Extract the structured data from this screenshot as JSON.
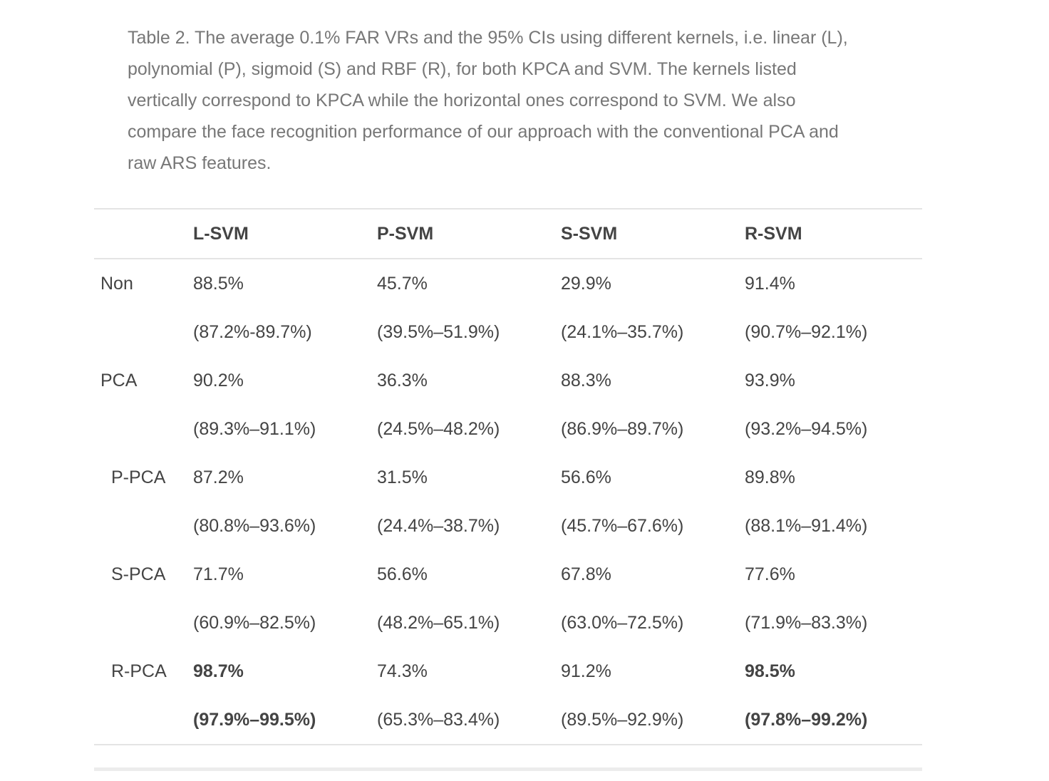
{
  "caption": {
    "lines": [
      "Table 2. The average 0.1% FAR VRs and the 95% CIs using different kernels, i.e. linear (L),",
      "polynomial (P), sigmoid (S) and RBF (R), for both KPCA and SVM. The kernels listed",
      "vertically correspond to KPCA while the horizontal ones correspond to SVM. We also",
      "compare the face recognition performance of our approach with the conventional PCA and",
      "raw ARS features."
    ]
  },
  "table": {
    "corner": "",
    "headers": [
      "L-SVM",
      "P-SVM",
      "S-SVM",
      "R-SVM"
    ],
    "rows": [
      {
        "label": "Non",
        "vr": [
          "88.5%",
          "45.7%",
          "29.9%",
          "91.4%"
        ],
        "ci": [
          "(87.2%-89.7%)",
          "(39.5%–51.9%)",
          "(24.1%–35.7%)",
          "(90.7%–92.1%)"
        ]
      },
      {
        "label": "PCA",
        "vr": [
          "90.2%",
          "36.3%",
          "88.3%",
          "93.9%"
        ],
        "ci": [
          "(89.3%–91.1%)",
          "(24.5%–48.2%)",
          "(86.9%–89.7%)",
          "(93.2%–94.5%)"
        ]
      },
      {
        "label": "P-PCA",
        "vr": [
          "87.2%",
          "31.5%",
          "56.6%",
          "89.8%"
        ],
        "ci": [
          "(80.8%–93.6%)",
          "(24.4%–38.7%)",
          "(45.7%–67.6%)",
          "(88.1%–91.4%)"
        ]
      },
      {
        "label": "S-PCA",
        "vr": [
          "71.7%",
          "56.6%",
          "67.8%",
          "77.6%"
        ],
        "ci": [
          "(60.9%–82.5%)",
          "(48.2%–65.1%)",
          "(63.0%–72.5%)",
          "(71.9%–83.3%)"
        ]
      },
      {
        "label": "R-PCA",
        "vr": [
          "98.7%",
          "74.3%",
          "91.2%",
          "98.5%"
        ],
        "ci": [
          "(97.9%–99.5%)",
          "(65.3%–83.4%)",
          "(89.5%–92.9%)",
          "(97.8%–99.2%)"
        ]
      }
    ]
  },
  "colors": {
    "caption_text": "#777777",
    "body_text": "#444444",
    "rule": "#e4e4e4"
  }
}
